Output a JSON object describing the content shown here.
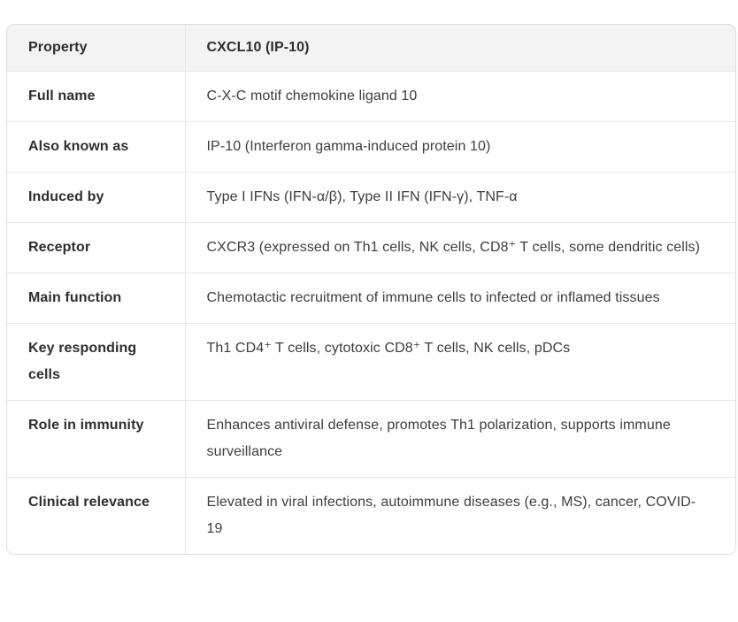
{
  "table": {
    "header": {
      "property": "Property",
      "value": "CXCL10 (IP-10)"
    },
    "rows": [
      {
        "property": "Full name",
        "value": "C-X-C motif chemokine ligand 10"
      },
      {
        "property": "Also known as",
        "value": "IP-10 (Interferon gamma-induced protein 10)"
      },
      {
        "property": "Induced by",
        "value": "Type I IFNs (IFN-α/β), Type II IFN (IFN-γ), TNF-α"
      },
      {
        "property": "Receptor",
        "value": "CXCR3 (expressed on Th1 cells, NK cells, CD8⁺ T cells, some dendritic cells)"
      },
      {
        "property": "Main function",
        "value": "Chemotactic recruitment of immune cells to infected or inflamed tissues"
      },
      {
        "property": "Key responding cells",
        "value": "Th1 CD4⁺ T cells, cytotoxic CD8⁺ T cells, NK cells, pDCs"
      },
      {
        "property": "Role in immunity",
        "value": "Enhances antiviral defense, promotes Th1 polarization, supports immune surveillance"
      },
      {
        "property": "Clinical relevance",
        "value": "Elevated in viral infections, autoimmune diseases (e.g., MS), cancer, COVID-19"
      }
    ],
    "colors": {
      "header_background": "#f3f3f3",
      "outer_border": "#dcdcdc",
      "row_divider": "#e6e6e6",
      "label_text": "#2e2e2e",
      "value_text": "#3d3d3d",
      "page_background": "#ffffff"
    }
  }
}
